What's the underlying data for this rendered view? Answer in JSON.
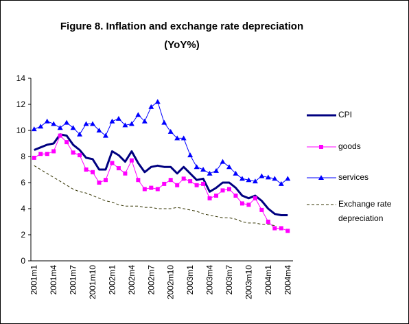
{
  "chart_data": {
    "type": "line",
    "title": [
      "Figure 8. Inflation and exchange rate depreciation",
      "(YoY%)"
    ],
    "categories": [
      "2001m1",
      null,
      null,
      "2001m4",
      null,
      null,
      "2001m7",
      null,
      null,
      "2001m10",
      null,
      null,
      "2002m1",
      null,
      null,
      "2002m4",
      null,
      null,
      "2002m7",
      null,
      null,
      "2002m10",
      null,
      null,
      "2003m1",
      null,
      null,
      "2003m4",
      null,
      null,
      "2003m7",
      null,
      null,
      "2003m10",
      null,
      null,
      "2004m1",
      null,
      null,
      "2004m4"
    ],
    "series": [
      {
        "name": "CPI",
        "color": "#000080",
        "width": 3,
        "marker": null,
        "dashed": false,
        "values": [
          8.5,
          8.7,
          8.9,
          9.0,
          9.7,
          9.6,
          8.9,
          8.5,
          7.9,
          7.8,
          7.0,
          7.0,
          8.4,
          8.1,
          7.6,
          8.4,
          7.5,
          6.8,
          7.2,
          7.3,
          7.2,
          7.2,
          6.7,
          7.2,
          6.7,
          6.2,
          6.3,
          5.3,
          5.6,
          6.0,
          6.0,
          5.6,
          5.0,
          4.8,
          5.0,
          4.6,
          4.0,
          3.6,
          3.5,
          3.5
        ]
      },
      {
        "name": "goods",
        "color": "#ff00ff",
        "width": 1,
        "marker": "square",
        "dashed": false,
        "values": [
          7.9,
          8.2,
          8.2,
          8.4,
          9.6,
          9.1,
          8.3,
          8.1,
          7.0,
          6.8,
          6.0,
          6.2,
          7.5,
          7.1,
          6.7,
          7.7,
          6.2,
          5.5,
          5.6,
          5.5,
          5.9,
          6.2,
          5.8,
          6.3,
          6.1,
          5.8,
          5.9,
          4.8,
          5.0,
          5.4,
          5.5,
          5.0,
          4.4,
          4.3,
          4.8,
          3.9,
          3.0,
          2.5,
          2.5,
          2.3
        ]
      },
      {
        "name": "services",
        "color": "#0000ff",
        "width": 1,
        "marker": "triangle",
        "dashed": false,
        "values": [
          10.1,
          10.3,
          10.7,
          10.5,
          10.2,
          10.6,
          10.2,
          9.7,
          10.5,
          10.5,
          10.0,
          9.6,
          10.7,
          10.9,
          10.4,
          10.5,
          11.2,
          10.7,
          11.8,
          12.2,
          10.6,
          9.9,
          9.4,
          9.4,
          8.1,
          7.2,
          7.0,
          6.7,
          6.9,
          7.6,
          7.2,
          6.7,
          6.3,
          6.2,
          6.1,
          6.5,
          6.4,
          6.3,
          5.9,
          6.3
        ]
      },
      {
        "name": "Exchange rate depreciation",
        "color": "#333300",
        "width": 1,
        "marker": null,
        "dashed": true,
        "values": [
          7.3,
          7.0,
          6.7,
          6.4,
          6.1,
          5.8,
          5.5,
          5.3,
          5.2,
          5.0,
          4.8,
          4.6,
          4.5,
          4.3,
          4.2,
          4.2,
          4.2,
          4.1,
          4.1,
          4.0,
          4.0,
          4.0,
          4.1,
          4.0,
          3.9,
          3.8,
          3.6,
          3.5,
          3.4,
          3.3,
          3.3,
          3.2,
          3.0,
          2.9,
          2.9,
          2.8,
          2.8,
          2.7,
          null,
          null
        ]
      }
    ],
    "ylim": [
      0,
      14
    ],
    "yticks": [
      0,
      2,
      4,
      6,
      8,
      10,
      12,
      14
    ],
    "grid": false,
    "legend": "right"
  }
}
